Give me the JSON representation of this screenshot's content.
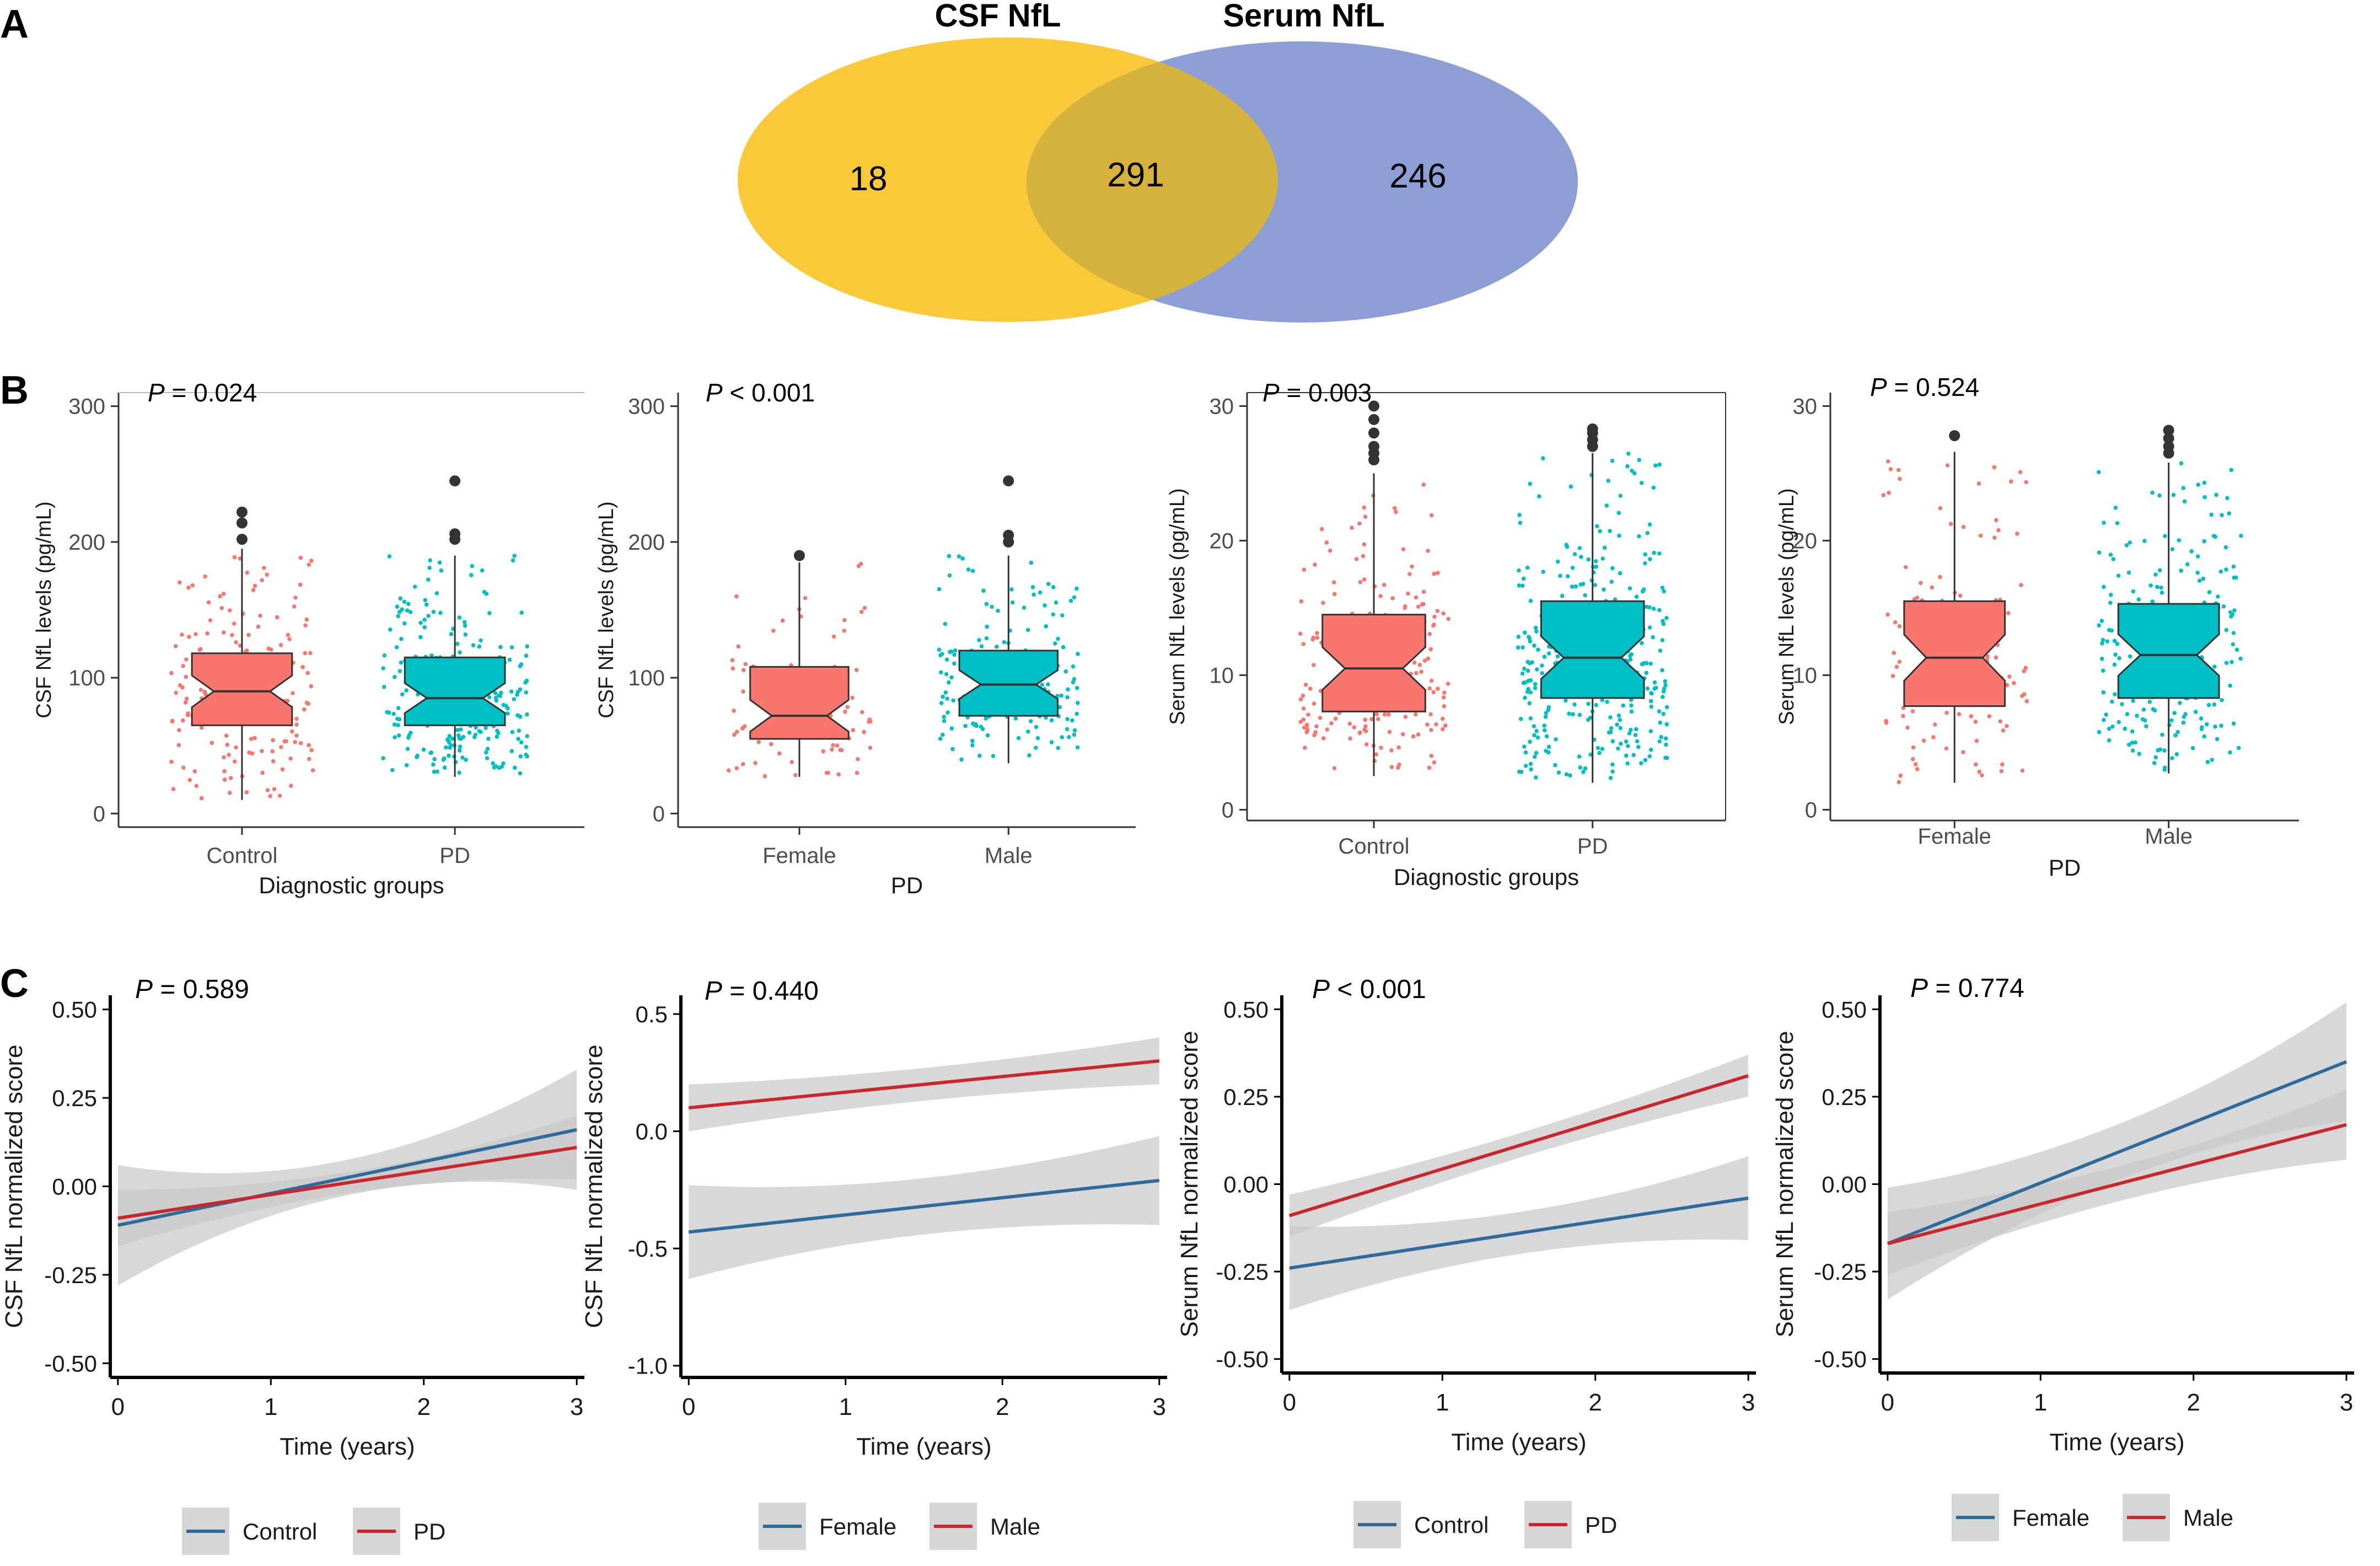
{
  "panel_labels": {
    "a": "A",
    "b": "B",
    "c": "C"
  },
  "venn": {
    "left_label": "CSF NfL",
    "right_label": "Serum NfL",
    "left_only": "18",
    "overlap": "291",
    "right_only": "246",
    "left_color": "#F9C93A",
    "right_color": "#8C9ED3",
    "overlap_color": "#D4B23C"
  },
  "colors": {
    "control": "#F8766D",
    "pd": "#00BFC4",
    "line_blue": "#2C6B9A",
    "line_red": "#C8282D",
    "ribbon": "#C9C9C9",
    "axis": "#333333"
  },
  "legends": [
    {
      "items": [
        "Control",
        "PD"
      ]
    },
    {
      "items": [
        "Female",
        "Male"
      ]
    },
    {
      "items": [
        "Control",
        "PD"
      ]
    },
    {
      "items": [
        "Female",
        "Male"
      ]
    }
  ],
  "chart_data": [
    {
      "type": "box",
      "panel": "B1",
      "pvalue_label": "P",
      "pvalue_text": " = 0.024",
      "ylabel": "CSF NfL levels (pg/mL)",
      "xlabel": "Diagnostic groups",
      "categories": [
        "Control",
        "PD"
      ],
      "ylim": [
        -10,
        310
      ],
      "yticks": [
        0,
        100,
        200,
        300
      ],
      "ytick_labels": [
        "0",
        "100",
        "200",
        "300"
      ],
      "boxes": [
        {
          "name": "Control",
          "min": 10,
          "q1": 65,
          "median": 90,
          "q3": 118,
          "max": 195,
          "outliers": [
            202,
            214,
            222
          ],
          "color": "#F8766D",
          "n": 180
        },
        {
          "name": "PD",
          "min": 27,
          "q1": 65,
          "median": 85,
          "q3": 115,
          "max": 190,
          "outliers": [
            202,
            206,
            245
          ],
          "color": "#00BFC4",
          "n": 260
        }
      ]
    },
    {
      "type": "box",
      "panel": "B2",
      "pvalue_label": "P",
      "pvalue_text": " < 0.001",
      "ylabel": "CSF NfL levels (pg/mL)",
      "xlabel": "PD",
      "categories": [
        "Female",
        "Male"
      ],
      "ylim": [
        -10,
        310
      ],
      "yticks": [
        0,
        100,
        200,
        300
      ],
      "ytick_labels": [
        "0",
        "100",
        "200",
        "300"
      ],
      "boxes": [
        {
          "name": "Female",
          "min": 27,
          "q1": 55,
          "median": 72,
          "q3": 108,
          "max": 185,
          "outliers": [
            190
          ],
          "color": "#F8766D",
          "n": 90
        },
        {
          "name": "Male",
          "min": 37,
          "q1": 72,
          "median": 95,
          "q3": 120,
          "max": 190,
          "outliers": [
            200,
            205,
            245
          ],
          "color": "#00BFC4",
          "n": 170
        }
      ]
    },
    {
      "type": "box",
      "panel": "B3",
      "pvalue_label": "P",
      "pvalue_text": " = 0.003",
      "ylabel": "Serum NfL levels (pg/mL)",
      "xlabel": "Diagnostic groups",
      "categories": [
        "Control",
        "PD"
      ],
      "ylim": [
        -0.8,
        31
      ],
      "yticks": [
        0,
        10,
        20,
        30
      ],
      "ytick_labels": [
        "0",
        "10",
        "20",
        "30"
      ],
      "boxes": [
        {
          "name": "Control",
          "min": 2.5,
          "q1": 7.3,
          "median": 10.5,
          "q3": 14.5,
          "max": 25,
          "outliers": [
            26,
            26.5,
            27,
            28,
            29,
            30
          ],
          "color": "#F8766D",
          "n": 190
        },
        {
          "name": "PD",
          "min": 2,
          "q1": 8.3,
          "median": 11.3,
          "q3": 15.5,
          "max": 26.5,
          "outliers": [
            27,
            27.5,
            28,
            28.3
          ],
          "color": "#00BFC4",
          "n": 380
        }
      ]
    },
    {
      "type": "box",
      "panel": "B4",
      "pvalue_label": "P",
      "pvalue_text": " = 0.524",
      "ylabel": "Serum NfL levels (pg/mL)",
      "xlabel": "PD",
      "categories": [
        "Female",
        "Male"
      ],
      "ylim": [
        -0.8,
        31
      ],
      "yticks": [
        0,
        10,
        20,
        30
      ],
      "ytick_labels": [
        "0",
        "10",
        "20",
        "30"
      ],
      "boxes": [
        {
          "name": "Female",
          "min": 2,
          "q1": 7.7,
          "median": 11.3,
          "q3": 15.5,
          "max": 26.6,
          "outliers": [
            27.8
          ],
          "color": "#F8766D",
          "n": 130
        },
        {
          "name": "Male",
          "min": 2.7,
          "q1": 8.3,
          "median": 11.5,
          "q3": 15.3,
          "max": 25.8,
          "outliers": [
            26.5,
            27,
            27.6,
            28.2
          ],
          "color": "#00BFC4",
          "n": 250
        }
      ]
    },
    {
      "type": "line",
      "panel": "C1",
      "pvalue_label": "P",
      "pvalue_text": " = 0.589",
      "ylabel": "CSF NfL normalized score",
      "xlabel": "Time (years)",
      "xlim": [
        -0.05,
        3.05
      ],
      "ylim": [
        -0.54,
        0.54
      ],
      "xticks": [
        0,
        1,
        2,
        3
      ],
      "xtick_labels": [
        "0",
        "1",
        "2",
        "3"
      ],
      "yticks": [
        -0.5,
        -0.25,
        0,
        0.25,
        0.5
      ],
      "ytick_labels": [
        "-0.50",
        "-0.25",
        "0.00",
        "0.25",
        "0.50"
      ],
      "series": [
        {
          "name": "Control",
          "color": "#2C6B9A",
          "y0": -0.11,
          "y3": 0.16,
          "band0": 0.17,
          "bandmid": 0.05,
          "band3": 0.17
        },
        {
          "name": "PD",
          "color": "#C8282D",
          "y0": -0.09,
          "y3": 0.11,
          "band0": 0.08,
          "bandmid": 0.03,
          "band3": 0.09
        }
      ]
    },
    {
      "type": "line",
      "panel": "C2",
      "pvalue_label": "P",
      "pvalue_text": " = 0.440",
      "ylabel": "CSF NfL normalized score",
      "xlabel": "Time (years)",
      "xlim": [
        -0.05,
        3.05
      ],
      "ylim": [
        -1.05,
        0.58
      ],
      "xticks": [
        0,
        1,
        2,
        3
      ],
      "xtick_labels": [
        "0",
        "1",
        "2",
        "3"
      ],
      "yticks": [
        -1.0,
        -0.5,
        0,
        0.5
      ],
      "ytick_labels": [
        "-1.0",
        "-0.5",
        "0.0",
        "0.5"
      ],
      "series": [
        {
          "name": "Female",
          "color": "#2C6B9A",
          "y0": -0.43,
          "y3": -0.21,
          "band0": 0.2,
          "bandmid": 0.12,
          "band3": 0.19
        },
        {
          "name": "Male",
          "color": "#C8282D",
          "y0": 0.1,
          "y3": 0.3,
          "band0": 0.1,
          "bandmid": 0.07,
          "band3": 0.1
        }
      ]
    },
    {
      "type": "line",
      "panel": "C3",
      "pvalue_label": "P",
      "pvalue_text": " < 0.001",
      "ylabel": "Serum NfL normalized score",
      "xlabel": "Time (years)",
      "xlim": [
        -0.05,
        3.05
      ],
      "ylim": [
        -0.54,
        0.54
      ],
      "xticks": [
        0,
        1,
        2,
        3
      ],
      "xtick_labels": [
        "0",
        "1",
        "2",
        "3"
      ],
      "yticks": [
        -0.5,
        -0.25,
        0,
        0.25,
        0.5
      ],
      "ytick_labels": [
        "-0.50",
        "-0.25",
        "0.00",
        "0.25",
        "0.50"
      ],
      "series": [
        {
          "name": "Control",
          "color": "#2C6B9A",
          "y0": -0.24,
          "y3": -0.04,
          "band0": 0.12,
          "bandmid": 0.06,
          "band3": 0.12
        },
        {
          "name": "PD",
          "color": "#C8282D",
          "y0": -0.09,
          "y3": 0.31,
          "band0": 0.06,
          "bandmid": 0.035,
          "band3": 0.06
        }
      ]
    },
    {
      "type": "line",
      "panel": "C4",
      "pvalue_label": "P",
      "pvalue_text": " = 0.774",
      "ylabel": "Serum NfL normalized score",
      "xlabel": "Time (years)",
      "xlim": [
        -0.05,
        3.05
      ],
      "ylim": [
        -0.54,
        0.54
      ],
      "xticks": [
        0,
        1,
        2,
        3
      ],
      "xtick_labels": [
        "0",
        "1",
        "2",
        "3"
      ],
      "yticks": [
        -0.5,
        -0.25,
        0,
        0.25,
        0.5
      ],
      "ytick_labels": [
        "-0.50",
        "-0.25",
        "0.00",
        "0.25",
        "0.50"
      ],
      "series": [
        {
          "name": "Female",
          "color": "#2C6B9A",
          "y0": -0.17,
          "y3": 0.35,
          "band0": 0.16,
          "bandmid": 0.08,
          "band3": 0.17
        },
        {
          "name": "Male",
          "color": "#C8282D",
          "y0": -0.17,
          "y3": 0.17,
          "band0": 0.09,
          "bandmid": 0.05,
          "band3": 0.1
        }
      ]
    }
  ]
}
